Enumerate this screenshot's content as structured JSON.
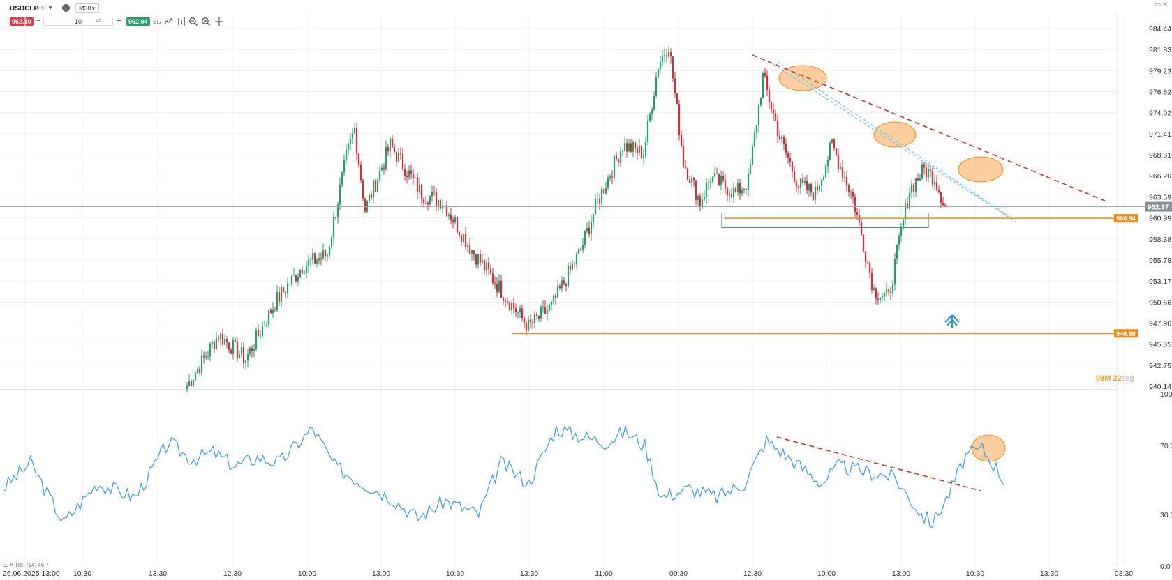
{
  "toolbar": {
    "symbol": "USDCLP",
    "provider": "cfd",
    "timeframe": "M30",
    "sell_price": "962.10",
    "quantity": "10",
    "buy_price": "962.94",
    "sltp": "SL/TP"
  },
  "countdown": {
    "minutes": "08",
    "min_unit": "M",
    "seconds": "22",
    "sec_unit": "seg"
  },
  "rsi_legend": "☰ ✕ RSI (14) 46.7",
  "colors": {
    "bull": "#22a06b",
    "bear": "#d92b3a",
    "rsi": "#3d9be9",
    "level": "#f08c1a",
    "trend": "#c0392b",
    "channel": "#6ec3e8",
    "zone": "#2e7d4f"
  },
  "chart_data": [
    {
      "type": "candlestick",
      "title": "USDCLP",
      "timeframe": "M30",
      "ylim": [
        940.14,
        986.0
      ],
      "y_ticks": [
        "984.44",
        "981.83",
        "979.23",
        "976.62",
        "974.02",
        "971.41",
        "968.81",
        "966.20",
        "963.59",
        "960.99",
        "958.38",
        "955.78",
        "953.17",
        "950.56",
        "947.96",
        "945.35",
        "942.75",
        "940.14"
      ],
      "x_ticks": [
        "26.06.2025 13:00",
        "10:30",
        "13:30",
        "12:30",
        "10:00",
        "13:00",
        "10:30",
        "13:30",
        "11:00",
        "09:30",
        "12:30",
        "10:00",
        "13:00",
        "10:30",
        "13:30",
        "03:30"
      ],
      "current_price": "962.37",
      "levels": [
        {
          "label": "960.94",
          "value": 960.94
        },
        {
          "label": "946.68",
          "value": 946.68
        }
      ],
      "anchor_points": [
        {
          "i": 0,
          "p": 940.2
        },
        {
          "i": 15,
          "p": 946.5
        },
        {
          "i": 28,
          "p": 943.5
        },
        {
          "i": 42,
          "p": 950.5
        },
        {
          "i": 55,
          "p": 955.0
        },
        {
          "i": 67,
          "p": 956.5
        },
        {
          "i": 76,
          "p": 968.5
        },
        {
          "i": 80,
          "p": 972.0
        },
        {
          "i": 85,
          "p": 962.0
        },
        {
          "i": 97,
          "p": 970.0
        },
        {
          "i": 112,
          "p": 964.0
        },
        {
          "i": 122,
          "p": 963.0
        },
        {
          "i": 136,
          "p": 957.0
        },
        {
          "i": 150,
          "p": 952.0
        },
        {
          "i": 163,
          "p": 947.5
        },
        {
          "i": 174,
          "p": 950.0
        },
        {
          "i": 188,
          "p": 957.0
        },
        {
          "i": 196,
          "p": 963.0
        },
        {
          "i": 208,
          "p": 970.0
        },
        {
          "i": 218,
          "p": 969.0
        },
        {
          "i": 225,
          "p": 980.0
        },
        {
          "i": 230,
          "p": 982.5
        },
        {
          "i": 237,
          "p": 968.0
        },
        {
          "i": 245,
          "p": 963.0
        },
        {
          "i": 250,
          "p": 966.0
        },
        {
          "i": 262,
          "p": 964.0
        },
        {
          "i": 268,
          "p": 965.5
        },
        {
          "i": 275,
          "p": 978.5
        },
        {
          "i": 283,
          "p": 971.0
        },
        {
          "i": 292,
          "p": 965.0
        },
        {
          "i": 300,
          "p": 964.0
        },
        {
          "i": 308,
          "p": 970.0
        },
        {
          "i": 318,
          "p": 963.5
        },
        {
          "i": 328,
          "p": 952.0
        },
        {
          "i": 335,
          "p": 951.0
        },
        {
          "i": 340,
          "p": 958.0
        },
        {
          "i": 345,
          "p": 964.5
        },
        {
          "i": 352,
          "p": 967.0
        },
        {
          "i": 357,
          "p": 966.0
        },
        {
          "i": 362,
          "p": 962.4
        }
      ],
      "rsi": {
        "name": "RSI (14)",
        "last": 46.7,
        "ylim": [
          0,
          100
        ],
        "y_ticks": [
          "100.0",
          "70.0",
          "30.0",
          "0.0"
        ],
        "anchor_points": [
          {
            "i": 0,
            "v": 45
          },
          {
            "i": 10,
            "v": 60
          },
          {
            "i": 22,
            "v": 25
          },
          {
            "i": 34,
            "v": 48
          },
          {
            "i": 48,
            "v": 40
          },
          {
            "i": 60,
            "v": 72
          },
          {
            "i": 68,
            "v": 62
          },
          {
            "i": 76,
            "v": 66
          },
          {
            "i": 84,
            "v": 58
          },
          {
            "i": 92,
            "v": 63
          },
          {
            "i": 100,
            "v": 60
          },
          {
            "i": 112,
            "v": 80
          },
          {
            "i": 120,
            "v": 58
          },
          {
            "i": 128,
            "v": 50
          },
          {
            "i": 140,
            "v": 40
          },
          {
            "i": 150,
            "v": 28
          },
          {
            "i": 160,
            "v": 38
          },
          {
            "i": 172,
            "v": 30
          },
          {
            "i": 180,
            "v": 60
          },
          {
            "i": 190,
            "v": 48
          },
          {
            "i": 200,
            "v": 80
          },
          {
            "i": 210,
            "v": 75
          },
          {
            "i": 218,
            "v": 72
          },
          {
            "i": 225,
            "v": 78
          },
          {
            "i": 232,
            "v": 70
          },
          {
            "i": 238,
            "v": 40
          },
          {
            "i": 248,
            "v": 45
          },
          {
            "i": 258,
            "v": 40
          },
          {
            "i": 268,
            "v": 48
          },
          {
            "i": 276,
            "v": 73
          },
          {
            "i": 288,
            "v": 58
          },
          {
            "i": 296,
            "v": 48
          },
          {
            "i": 302,
            "v": 58
          },
          {
            "i": 314,
            "v": 54
          },
          {
            "i": 322,
            "v": 52
          },
          {
            "i": 332,
            "v": 30
          },
          {
            "i": 336,
            "v": 25
          },
          {
            "i": 342,
            "v": 42
          },
          {
            "i": 348,
            "v": 64
          },
          {
            "i": 354,
            "v": 68
          },
          {
            "i": 360,
            "v": 55
          },
          {
            "i": 362,
            "v": 46.7
          }
        ]
      }
    }
  ]
}
